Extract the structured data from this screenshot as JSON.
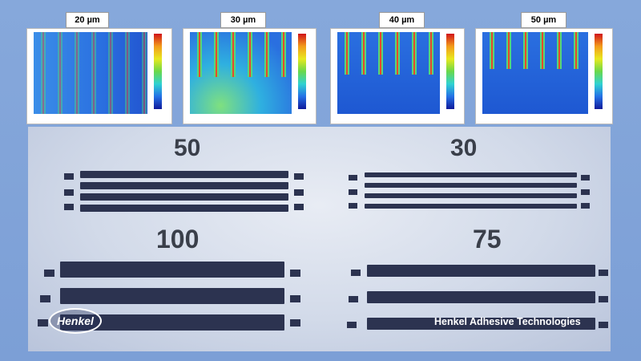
{
  "panels": [
    {
      "label": "20 µm"
    },
    {
      "label": "30 µm"
    },
    {
      "label": "40 µm"
    },
    {
      "label": "50 µm"
    }
  ],
  "photo": {
    "groups": [
      "50",
      "30",
      "100",
      "75"
    ],
    "logo": "Henkel",
    "caption": "Henkel Adhesive Technologies"
  }
}
